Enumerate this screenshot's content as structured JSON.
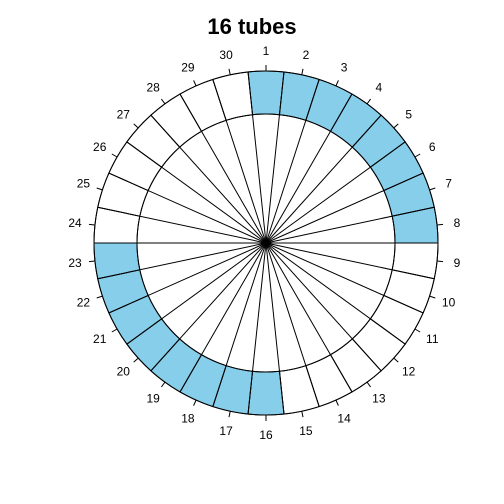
{
  "title": "16 tubes",
  "rotor": {
    "slots": 30,
    "filled_color": "#87CEEB",
    "empty_color": "#FFFFFF",
    "line_color": "#000000",
    "labels": [
      "1",
      "2",
      "3",
      "4",
      "5",
      "6",
      "7",
      "8",
      "9",
      "10",
      "11",
      "12",
      "13",
      "14",
      "15",
      "16",
      "17",
      "18",
      "19",
      "20",
      "21",
      "22",
      "23",
      "24",
      "25",
      "26",
      "27",
      "28",
      "29",
      "30"
    ],
    "filled": [
      1,
      2,
      3,
      4,
      5,
      6,
      7,
      8,
      16,
      17,
      18,
      19,
      20,
      21,
      22,
      23
    ]
  }
}
